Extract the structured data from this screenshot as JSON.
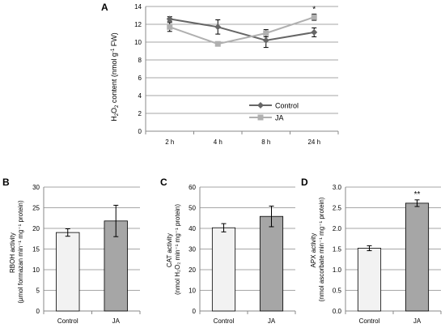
{
  "colors": {
    "control_line": "#666666",
    "ja_line": "#b0b0b0",
    "control_bar": "#f2f2f2",
    "ja_bar": "#a6a6a6",
    "grid": "#a6a6a6",
    "axis": "#888888",
    "text": "#000000"
  },
  "chart_data": [
    {
      "panel": "A",
      "type": "line",
      "categories": [
        "2 h",
        "4 h",
        "8 h",
        "24 h"
      ],
      "ylabel": {
        "pre": "H",
        "sub1": "2",
        "mid": "O",
        "sub2": "2",
        "post": " content (nmol g",
        "sup": "-1",
        "end": " FW)"
      },
      "ylim": [
        0,
        14
      ],
      "yticks": [
        "0",
        "2",
        "4",
        "6",
        "8",
        "10",
        "12",
        "14"
      ],
      "grid": true,
      "legend_position": "bottom-right",
      "series": [
        {
          "name": "Control",
          "values": [
            12.6,
            11.7,
            10.2,
            11.1
          ],
          "errors": [
            0.25,
            0.8,
            0.8,
            0.5
          ],
          "marker": "diamond"
        },
        {
          "name": "JA",
          "values": [
            11.7,
            9.8,
            11.0,
            12.8
          ],
          "errors": [
            0.5,
            0.15,
            0.4,
            0.35
          ],
          "marker": "square"
        }
      ],
      "annotations": [
        {
          "category": "24 h",
          "text": "*"
        }
      ]
    },
    {
      "panel": "B",
      "type": "bar",
      "categories": [
        "Control",
        "JA"
      ],
      "values": [
        19.0,
        21.8
      ],
      "errors": [
        0.9,
        3.8
      ],
      "ylabel_lines": [
        "RBOH activity",
        "(µmol formazan min⁻¹ mg⁻¹ protein)"
      ],
      "ylim": [
        0,
        30
      ],
      "yticks": [
        "0",
        "5",
        "10",
        "15",
        "20",
        "25",
        "30"
      ],
      "grid": true,
      "annotations": []
    },
    {
      "panel": "C",
      "type": "bar",
      "categories": [
        "Control",
        "JA"
      ],
      "values": [
        40.3,
        45.8
      ],
      "errors": [
        2.0,
        5.0
      ],
      "ylabel_lines": [
        "CAT activity",
        "(nmol H₂O₂ min⁻¹ mg⁻¹ protein)"
      ],
      "ylim": [
        0,
        60
      ],
      "yticks": [
        "0",
        "10",
        "20",
        "30",
        "40",
        "50",
        "60"
      ],
      "grid": true,
      "annotations": []
    },
    {
      "panel": "D",
      "type": "bar",
      "categories": [
        "Control",
        "JA"
      ],
      "values": [
        1.52,
        2.61
      ],
      "errors": [
        0.06,
        0.08
      ],
      "ylabel_lines": [
        "APX activity",
        "(nmol ascorbate min⁻¹ mg⁻¹ protein)"
      ],
      "ylim": [
        0,
        3.0
      ],
      "yticks": [
        "0.0",
        "0.5",
        "1.0",
        "1.5",
        "2.0",
        "2.5",
        "3.0"
      ],
      "grid": true,
      "annotations": [
        {
          "category": "JA",
          "text": "**"
        }
      ]
    }
  ]
}
